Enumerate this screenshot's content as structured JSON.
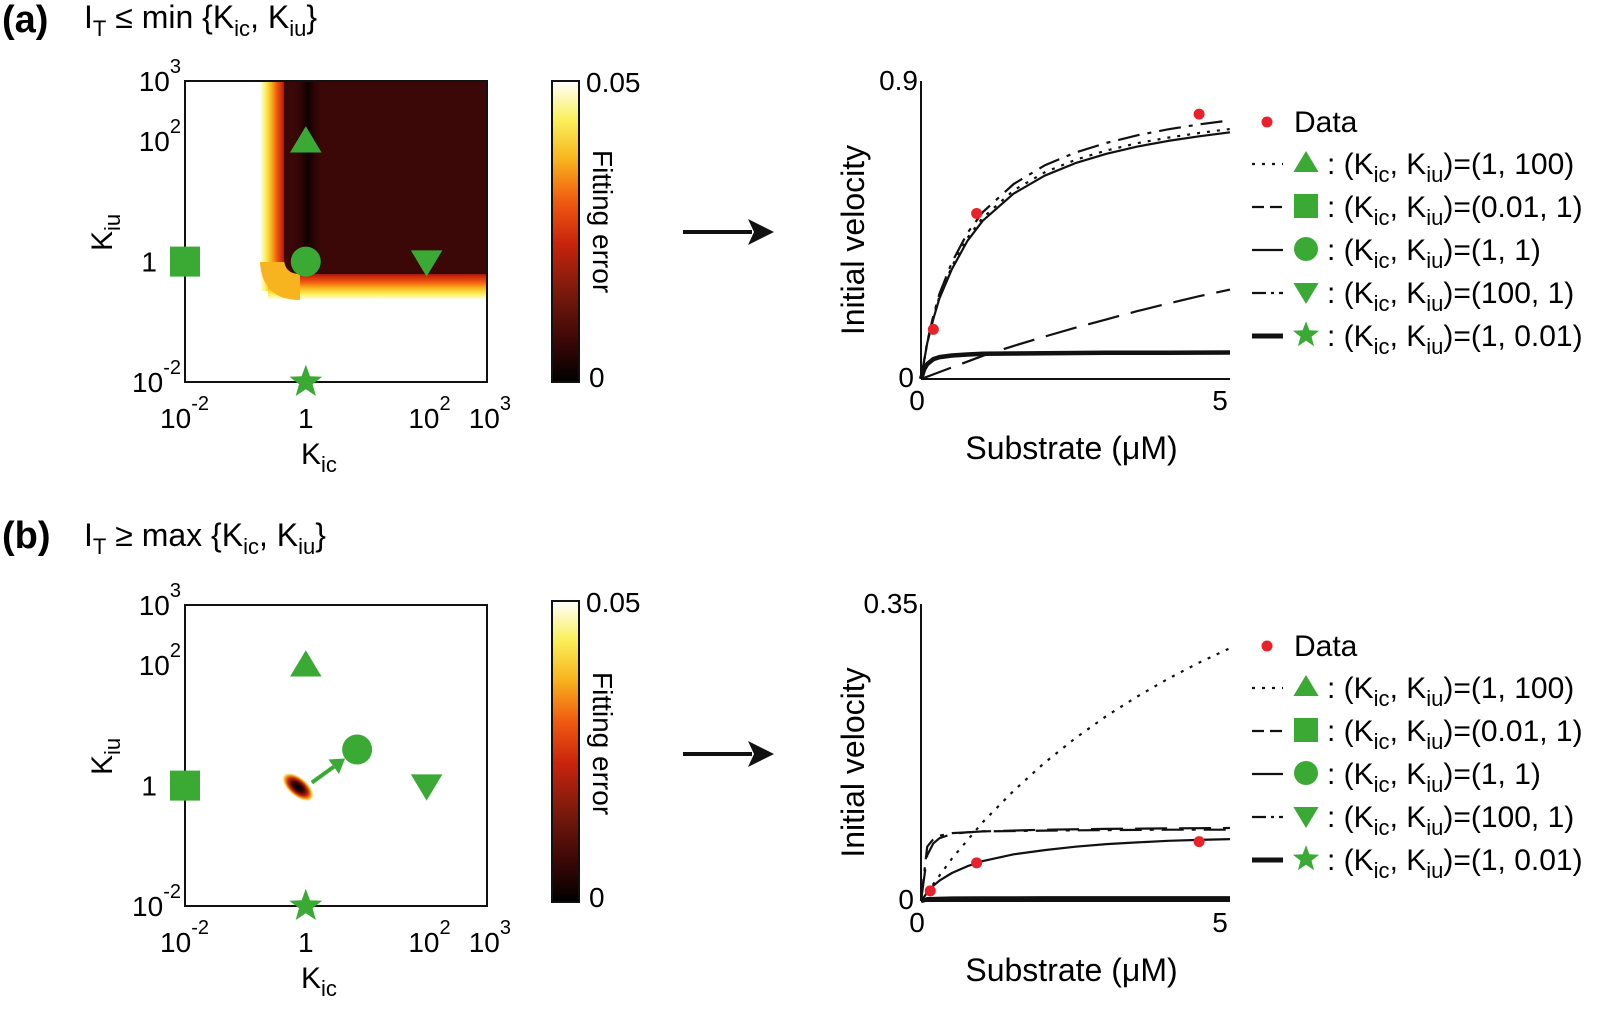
{
  "colors": {
    "marker": "#3aaa35",
    "data_point": "#e8222a",
    "curve": "#111111",
    "colormap": [
      "#000000",
      "#3c0807",
      "#7a1a0c",
      "#c8240c",
      "#f05a10",
      "#f8b41e",
      "#faf05a",
      "#ffffff"
    ]
  },
  "panels": [
    {
      "label": "(a)",
      "condition": {
        "prefix": "I",
        "prefix_sub": "T",
        "relation": " ≤ min {K",
        "sub1": "ic",
        "mid": ", K",
        "sub2": "iu",
        "end": "}"
      },
      "heatmap": {
        "xlabel_main": "K",
        "xlabel_sub": "ic",
        "ylabel_main": "K",
        "ylabel_sub": "iu",
        "x_ticks": [
          {
            "base": "10",
            "exp": "-2",
            "v": -2
          },
          {
            "base": "1",
            "exp": "",
            "v": 0
          },
          {
            "base": "10",
            "exp": "2",
            "v": 2
          },
          {
            "base": "10",
            "exp": "3",
            "v": 3
          }
        ],
        "y_ticks": [
          {
            "base": "10",
            "exp": "3",
            "v": 3
          },
          {
            "base": "10",
            "exp": "2",
            "v": 2
          },
          {
            "base": "1",
            "exp": "",
            "v": 0
          },
          {
            "base": "10",
            "exp": "-2",
            "v": -2
          }
        ],
        "log_range": [
          -2,
          3
        ],
        "low_error_region": "K_ic ≥ ~0.3 and K_iu ≥ ~0.3 (dark)",
        "markers": [
          {
            "shape": "triangle-up",
            "log_kic": 0,
            "log_kiu": 2
          },
          {
            "shape": "square",
            "log_kic": -2,
            "log_kiu": 0
          },
          {
            "shape": "circle",
            "log_kic": 0,
            "log_kiu": 0
          },
          {
            "shape": "triangle-down",
            "log_kic": 2,
            "log_kiu": 0
          },
          {
            "shape": "star",
            "log_kic": 0,
            "log_kiu": -2
          }
        ],
        "arrow": null
      },
      "colorbar": {
        "max_label": "0.05",
        "min_label": "0",
        "title": "Fitting error"
      }
    },
    {
      "label": "(b)",
      "condition": {
        "prefix": "I",
        "prefix_sub": "T",
        "relation": " ≥ max {K",
        "sub1": "ic",
        "mid": ", K",
        "sub2": "iu",
        "end": "}"
      },
      "heatmap": {
        "xlabel_main": "K",
        "xlabel_sub": "ic",
        "ylabel_main": "K",
        "ylabel_sub": "iu",
        "x_ticks": [
          {
            "base": "10",
            "exp": "-2",
            "v": -2
          },
          {
            "base": "1",
            "exp": "",
            "v": 0
          },
          {
            "base": "10",
            "exp": "2",
            "v": 2
          },
          {
            "base": "10",
            "exp": "3",
            "v": 3
          }
        ],
        "y_ticks": [
          {
            "base": "10",
            "exp": "3",
            "v": 3
          },
          {
            "base": "10",
            "exp": "2",
            "v": 2
          },
          {
            "base": "1",
            "exp": "",
            "v": 0
          },
          {
            "base": "10",
            "exp": "-2",
            "v": -2
          }
        ],
        "log_range": [
          -2,
          3
        ],
        "low_error_region": "small spot near K_ic ≈ 1, K_iu ≈ 1",
        "markers": [
          {
            "shape": "triangle-up",
            "log_kic": 0,
            "log_kiu": 2
          },
          {
            "shape": "square",
            "log_kic": -2,
            "log_kiu": 0
          },
          {
            "shape": "circle",
            "log_kic": 0.85,
            "log_kiu": 0.6
          },
          {
            "shape": "triangle-down",
            "log_kic": 2,
            "log_kiu": 0
          },
          {
            "shape": "star",
            "log_kic": 0,
            "log_kiu": -2
          }
        ],
        "arrow": {
          "from": [
            0.1,
            0.05
          ],
          "to": [
            0.65,
            0.45
          ]
        }
      },
      "colorbar": {
        "max_label": "0.05",
        "min_label": "0",
        "title": "Fitting error"
      }
    }
  ],
  "chart_data": [
    {
      "type": "line",
      "panel": "(a)",
      "xlabel": "Substrate (μM)",
      "ylabel": "Initial velocity",
      "xlim": [
        0,
        5
      ],
      "ylim": [
        0,
        0.9
      ],
      "x_tick_labels": [
        "0",
        "5"
      ],
      "y_tick_labels": [
        "0",
        "0.9"
      ],
      "data_points": [
        {
          "x": 0.2,
          "y": 0.15
        },
        {
          "x": 0.9,
          "y": 0.5
        },
        {
          "x": 4.5,
          "y": 0.8
        }
      ],
      "series": [
        {
          "x": [
            0,
            0.1,
            0.2,
            0.3,
            0.5,
            0.75,
            1,
            1.5,
            2,
            2.5,
            3,
            3.5,
            4,
            4.5,
            5
          ],
          "y": [
            0,
            0.109,
            0.186,
            0.25,
            0.34,
            0.426,
            0.487,
            0.57,
            0.624,
            0.662,
            0.69,
            0.712,
            0.729,
            0.743,
            0.755
          ]
        },
        {
          "x": [
            0,
            0.5,
            1,
            1.5,
            2,
            2.5,
            3,
            3.5,
            4,
            4.5,
            5
          ],
          "y": [
            0,
            0.035,
            0.07,
            0.1,
            0.128,
            0.155,
            0.18,
            0.205,
            0.228,
            0.25,
            0.27
          ]
        },
        {
          "x": [
            0,
            0.1,
            0.2,
            0.3,
            0.5,
            0.75,
            1,
            1.5,
            2,
            2.5,
            3,
            3.5,
            4,
            4.5,
            5
          ],
          "y": [
            0,
            0.108,
            0.182,
            0.244,
            0.332,
            0.417,
            0.478,
            0.56,
            0.614,
            0.652,
            0.68,
            0.702,
            0.719,
            0.733,
            0.745
          ]
        },
        {
          "x": [
            0,
            0.1,
            0.2,
            0.3,
            0.5,
            0.75,
            1,
            1.5,
            2,
            2.5,
            3,
            3.5,
            4,
            4.5,
            5
          ],
          "y": [
            0,
            0.112,
            0.192,
            0.258,
            0.352,
            0.441,
            0.504,
            0.589,
            0.645,
            0.684,
            0.713,
            0.736,
            0.754,
            0.769,
            0.781
          ]
        },
        {
          "x": [
            0,
            0.05,
            0.1,
            0.2,
            0.3,
            0.5,
            0.75,
            1,
            1.5,
            2,
            3,
            4,
            5
          ],
          "y": [
            0,
            0.029,
            0.045,
            0.06,
            0.066,
            0.071,
            0.074,
            0.076,
            0.077,
            0.078,
            0.079,
            0.0795,
            0.08
          ]
        }
      ]
    },
    {
      "type": "line",
      "panel": "(b)",
      "xlabel": "Substrate (μM)",
      "ylabel": "Initial velocity",
      "xlim": [
        0,
        5
      ],
      "ylim": [
        0,
        0.35
      ],
      "x_tick_labels": [
        "0",
        "5"
      ],
      "y_tick_labels": [
        "0",
        "0.35"
      ],
      "data_points": [
        {
          "x": 0.15,
          "y": 0.012
        },
        {
          "x": 0.9,
          "y": 0.045
        },
        {
          "x": 4.5,
          "y": 0.07
        }
      ],
      "series": [
        {
          "x": [
            0,
            0.5,
            1,
            1.5,
            2,
            2.5,
            3,
            3.5,
            4,
            4.5,
            5
          ],
          "y": [
            0,
            0.05,
            0.093,
            0.13,
            0.163,
            0.192,
            0.218,
            0.241,
            0.262,
            0.281,
            0.298
          ]
        },
        {
          "x": [
            0,
            0.1,
            0.2,
            0.3,
            0.5,
            0.75,
            1,
            2,
            3,
            4,
            5
          ],
          "y": [
            0,
            0.054,
            0.068,
            0.074,
            0.079,
            0.081,
            0.082,
            0.084,
            0.085,
            0.0855,
            0.086
          ]
        },
        {
          "x": [
            0,
            0.1,
            0.2,
            0.3,
            0.5,
            0.75,
            1,
            1.5,
            2,
            2.5,
            3,
            3.5,
            4,
            4.5,
            5
          ],
          "y": [
            0,
            0.01,
            0.018,
            0.024,
            0.033,
            0.041,
            0.047,
            0.055,
            0.06,
            0.064,
            0.067,
            0.069,
            0.071,
            0.072,
            0.073
          ]
        },
        {
          "x": [
            0,
            0.1,
            0.2,
            0.3,
            0.5,
            0.75,
            1,
            2,
            3,
            4,
            5
          ],
          "y": [
            0,
            0.064,
            0.073,
            0.077,
            0.08,
            0.081,
            0.082,
            0.083,
            0.0835,
            0.084,
            0.084
          ]
        },
        {
          "x": [
            0,
            0.1,
            0.5,
            1,
            2,
            3,
            4,
            5
          ],
          "y": [
            0,
            0.002,
            0.0028,
            0.003,
            0.0031,
            0.0031,
            0.0031,
            0.0031
          ]
        }
      ]
    }
  ],
  "legend": {
    "data_label": "Data",
    "items": [
      {
        "shape": "triangle-up",
        "line": "dotted",
        "pre": ": (K",
        "s1": "ic",
        "mid": ", K",
        "s2": "iu",
        "post": ")=(1, 100)"
      },
      {
        "shape": "square",
        "line": "dashed",
        "pre": ": (K",
        "s1": "ic",
        "mid": ", K",
        "s2": "iu",
        "post": ")=(0.01, 1)"
      },
      {
        "shape": "circle",
        "line": "solid",
        "pre": ": (K",
        "s1": "ic",
        "mid": ", K",
        "s2": "iu",
        "post": ")=(1, 1)"
      },
      {
        "shape": "triangle-down",
        "line": "dashdot",
        "pre": ": (K",
        "s1": "ic",
        "mid": ", K",
        "s2": "iu",
        "post": ")=(100, 1)"
      },
      {
        "shape": "star",
        "line": "thick",
        "pre": ": (K",
        "s1": "ic",
        "mid": ", K",
        "s2": "iu",
        "post": ")=(1, 0.01)"
      }
    ]
  }
}
